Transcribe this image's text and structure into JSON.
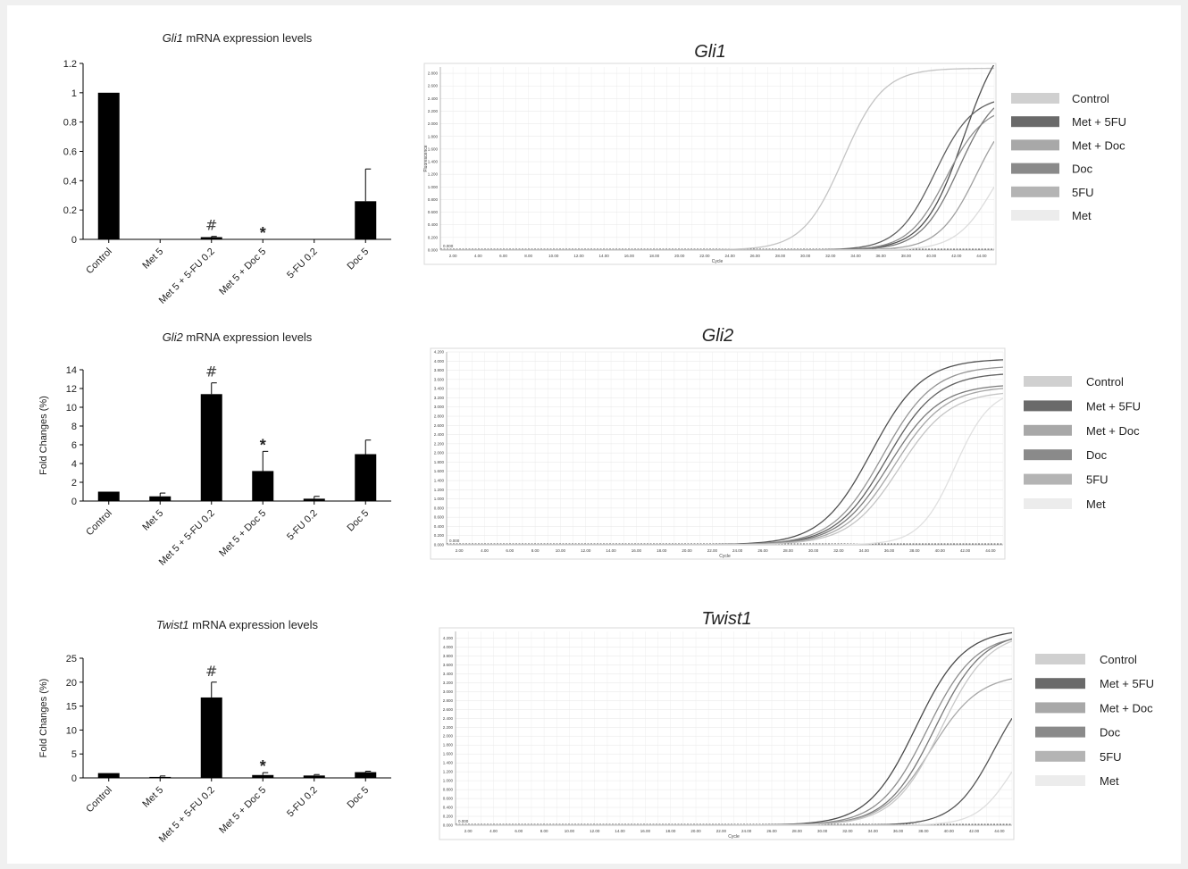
{
  "chart_data": [
    {
      "type": "bar",
      "title": "Gli1 mRNA expression levels",
      "title_italic": "Gli1",
      "title_rest": " mRNA expression levels",
      "ylabel": "",
      "categories": [
        "Control",
        "Met 5",
        "Met 5 + 5-FU 0.2",
        "Met 5 + Doc 5",
        "5-FU 0.2",
        "Doc 5"
      ],
      "values": [
        1.0,
        0.0,
        0.015,
        0.0,
        0.0,
        0.26
      ],
      "errors": [
        0,
        0,
        0.005,
        0,
        0,
        0.22
      ],
      "ylim": [
        0,
        1.2
      ],
      "yticks": [
        0,
        0.2,
        0.4,
        0.6,
        0.8,
        1,
        1.2
      ],
      "ytick_labels": [
        "0",
        "0.2",
        "0.4",
        "0.6",
        "0.8",
        "1",
        "1.2"
      ],
      "annotations": [
        {
          "category": "Met 5 + 5-FU 0.2",
          "text": "#"
        },
        {
          "category": "Met 5 + Doc 5",
          "text": "*"
        }
      ],
      "bar_color": "#000000"
    },
    {
      "type": "bar",
      "title": "Gli2 mRNA expression levels",
      "title_italic": "Gli2",
      "title_rest": " mRNA expression levels",
      "ylabel": "Fold Changes (%)",
      "categories": [
        "Control",
        "Met 5",
        "Met 5 + 5-FU 0.2",
        "Met 5 + Doc 5",
        "5-FU 0.2",
        "Doc 5"
      ],
      "values": [
        1.0,
        0.5,
        11.4,
        3.2,
        0.25,
        5.0
      ],
      "errors": [
        0,
        0.35,
        1.2,
        2.1,
        0.25,
        1.5
      ],
      "ylim": [
        0,
        14
      ],
      "yticks": [
        0,
        2,
        4,
        6,
        8,
        10,
        12,
        14
      ],
      "ytick_labels": [
        "0",
        "2",
        "4",
        "6",
        "8",
        "10",
        "12",
        "14"
      ],
      "annotations": [
        {
          "category": "Met 5 + 5-FU 0.2",
          "text": "#"
        },
        {
          "category": "Met 5 + Doc 5",
          "text": "*"
        }
      ],
      "bar_color": "#000000"
    },
    {
      "type": "bar",
      "title": "Twist1 mRNA expression levels",
      "title_italic": "Twist1",
      "title_rest": " mRNA expression levels",
      "ylabel": "Fold Changes (%)",
      "categories": [
        "Control",
        "Met 5",
        "Met 5 + 5-FU 0.2",
        "Met 5 + Doc 5",
        "5-FU 0.2",
        "Doc 5"
      ],
      "values": [
        1.0,
        0.2,
        16.8,
        0.6,
        0.5,
        1.2
      ],
      "errors": [
        0,
        0.2,
        3.2,
        0.5,
        0.2,
        0.2
      ],
      "ylim": [
        0,
        25
      ],
      "yticks": [
        0,
        5,
        10,
        15,
        20,
        25
      ],
      "ytick_labels": [
        "0",
        "5",
        "10",
        "15",
        "20",
        "25"
      ],
      "annotations": [
        {
          "category": "Met 5 + 5-FU 0.2",
          "text": "#"
        },
        {
          "category": "Met 5 + Doc 5",
          "text": "*"
        }
      ],
      "bar_color": "#000000"
    },
    {
      "type": "line",
      "title": "Gli1",
      "xlabel": "Cycle",
      "ylabel": "Fluorescence",
      "xlim": [
        1,
        45
      ],
      "ylim": [
        0,
        2.9
      ],
      "xticks": [
        2,
        4,
        6,
        8,
        10,
        12,
        14,
        16,
        18,
        20,
        22,
        24,
        26,
        28,
        30,
        32,
        34,
        36,
        38,
        40,
        42,
        44
      ],
      "xtick_labels": [
        "2.00",
        "4.00",
        "6.00",
        "8.00",
        "10.00",
        "12.00",
        "14.00",
        "16.00",
        "18.00",
        "20.00",
        "22.00",
        "24.00",
        "26.00",
        "28.00",
        "30.00",
        "32.00",
        "34.00",
        "36.00",
        "38.00",
        "40.00",
        "42.00",
        "44.00"
      ],
      "yticks": [
        0,
        0.2,
        0.4,
        0.6,
        0.8,
        1.0,
        1.2,
        1.4,
        1.6,
        1.8,
        2.0,
        2.2,
        2.4,
        2.6,
        2.8
      ],
      "ytick_labels": [
        "0.000",
        "0.200",
        "0.400",
        "0.600",
        "0.800",
        "1.000",
        "1.200",
        "1.400",
        "1.600",
        "1.800",
        "2.000",
        "2.200",
        "2.400",
        "2.600",
        "2.800"
      ],
      "threshold_label": "0.000",
      "legend": [
        {
          "name": "Control",
          "color": "#d0d0d0"
        },
        {
          "name": "Met + 5FU",
          "color": "#6a6a6a"
        },
        {
          "name": "Met + Doc",
          "color": "#a8a8a8"
        },
        {
          "name": "Doc",
          "color": "#8a8a8a"
        },
        {
          "name": "5FU",
          "color": "#b4b4b4"
        },
        {
          "name": "Met",
          "color": "#ececec"
        }
      ],
      "series": [
        {
          "name": "Control",
          "color": "#c4c4c4",
          "plateau": 2.88,
          "ct_mid": 33.0,
          "slope": 1.6
        },
        {
          "name": "Met + 5FU",
          "color": "#505050",
          "plateau": 3.6,
          "ct_mid": 42.6,
          "slope": 1.6
        },
        {
          "name": "Met + 5FU",
          "color": "#606060",
          "plateau": 2.45,
          "ct_mid": 40.3,
          "slope": 1.5
        },
        {
          "name": "Met + Doc",
          "color": "#909090",
          "plateau": 2.3,
          "ct_mid": 41.2,
          "slope": 1.5
        },
        {
          "name": "Doc",
          "color": "#7a7a7a",
          "plateau": 2.6,
          "ct_mid": 42.2,
          "slope": 1.5
        },
        {
          "name": "5FU",
          "color": "#a0a0a0",
          "plateau": 2.4,
          "ct_mid": 43.6,
          "slope": 1.5
        },
        {
          "name": "Met",
          "color": "#dcdcdc",
          "plateau": 2.0,
          "ct_mid": 45.0,
          "slope": 1.5
        }
      ]
    },
    {
      "type": "line",
      "title": "Gli2",
      "xlabel": "Cycle",
      "ylabel": "",
      "xlim": [
        1,
        45
      ],
      "ylim": [
        0,
        4.2
      ],
      "xticks": [
        2,
        4,
        6,
        8,
        10,
        12,
        14,
        16,
        18,
        20,
        22,
        24,
        26,
        28,
        30,
        32,
        34,
        36,
        38,
        40,
        42,
        44
      ],
      "xtick_labels": [
        "2.00",
        "4.00",
        "6.00",
        "8.00",
        "10.00",
        "12.00",
        "14.00",
        "16.00",
        "18.00",
        "20.00",
        "22.00",
        "24.00",
        "26.00",
        "28.00",
        "30.00",
        "32.00",
        "34.00",
        "36.00",
        "38.00",
        "40.00",
        "42.00",
        "44.00"
      ],
      "yticks": [
        0,
        0.2,
        0.4,
        0.6,
        0.8,
        1.0,
        1.2,
        1.4,
        1.6,
        1.8,
        2.0,
        2.2,
        2.4,
        2.6,
        2.8,
        3.0,
        3.2,
        3.4,
        3.6,
        3.8,
        4.0,
        4.2
      ],
      "ytick_labels": [
        "0.000",
        "0.200",
        "0.400",
        "0.600",
        "0.800",
        "1.000",
        "1.200",
        "1.400",
        "1.600",
        "1.800",
        "2.000",
        "2.200",
        "2.400",
        "2.600",
        "2.800",
        "3.000",
        "3.200",
        "3.400",
        "3.600",
        "3.800",
        "4.000",
        "4.200"
      ],
      "threshold_label": "0.000",
      "legend": [
        {
          "name": "Control",
          "color": "#d0d0d0"
        },
        {
          "name": "Met + 5FU",
          "color": "#6a6a6a"
        },
        {
          "name": "Met + Doc",
          "color": "#a8a8a8"
        },
        {
          "name": "Doc",
          "color": "#8a8a8a"
        },
        {
          "name": "5FU",
          "color": "#b4b4b4"
        },
        {
          "name": "Met",
          "color": "#ececec"
        }
      ],
      "series": [
        {
          "name": "Met + 5FU",
          "color": "#505050",
          "plateau": 4.05,
          "ct_mid": 34.6,
          "slope": 2.0
        },
        {
          "name": "Met + 5FU",
          "color": "#606060",
          "plateau": 3.75,
          "ct_mid": 35.8,
          "slope": 2.0
        },
        {
          "name": "Met + Doc",
          "color": "#949494",
          "plateau": 3.9,
          "ct_mid": 35.5,
          "slope": 2.0
        },
        {
          "name": "Doc",
          "color": "#7a7a7a",
          "plateau": 3.5,
          "ct_mid": 36.0,
          "slope": 2.0
        },
        {
          "name": "5FU",
          "color": "#a6a6a6",
          "plateau": 3.45,
          "ct_mid": 36.4,
          "slope": 2.0
        },
        {
          "name": "Control",
          "color": "#c4c4c4",
          "plateau": 3.35,
          "ct_mid": 36.8,
          "slope": 2.0
        },
        {
          "name": "Met",
          "color": "#e0e0e0",
          "plateau": 3.4,
          "ct_mid": 41.2,
          "slope": 1.4
        }
      ]
    },
    {
      "type": "line",
      "title": "Twist1",
      "xlabel": "Cycle",
      "ylabel": "",
      "xlim": [
        1,
        45
      ],
      "ylim": [
        0,
        4.35
      ],
      "xticks": [
        2,
        4,
        6,
        8,
        10,
        12,
        14,
        16,
        18,
        20,
        22,
        24,
        26,
        28,
        30,
        32,
        34,
        36,
        38,
        40,
        42,
        44
      ],
      "xtick_labels": [
        "2.00",
        "4.00",
        "6.00",
        "8.00",
        "10.00",
        "12.00",
        "14.00",
        "16.00",
        "18.00",
        "20.00",
        "22.00",
        "24.00",
        "26.00",
        "28.00",
        "30.00",
        "32.00",
        "34.00",
        "36.00",
        "38.00",
        "40.00",
        "42.00",
        "44.00"
      ],
      "yticks": [
        0,
        0.2,
        0.4,
        0.6,
        0.8,
        1.0,
        1.2,
        1.4,
        1.6,
        1.8,
        2.0,
        2.2,
        2.4,
        2.6,
        2.8,
        3.0,
        3.2,
        3.4,
        3.6,
        3.8,
        4.0,
        4.2
      ],
      "ytick_labels": [
        "0.000",
        "0.200",
        "0.400",
        "0.600",
        "0.800",
        "1.000",
        "1.200",
        "1.400",
        "1.600",
        "1.800",
        "2.000",
        "2.200",
        "2.400",
        "2.600",
        "2.800",
        "3.000",
        "3.200",
        "3.400",
        "3.600",
        "3.800",
        "4.000",
        "4.200"
      ],
      "threshold_label": "0.000",
      "legend": [
        {
          "name": "Control",
          "color": "#d0d0d0"
        },
        {
          "name": "Met + 5FU",
          "color": "#6a6a6a"
        },
        {
          "name": "Met + Doc",
          "color": "#a8a8a8"
        },
        {
          "name": "Doc",
          "color": "#8a8a8a"
        },
        {
          "name": "5FU",
          "color": "#b4b4b4"
        },
        {
          "name": "Met",
          "color": "#ececec"
        }
      ],
      "series": [
        {
          "name": "Met + 5FU",
          "color": "#4a4a4a",
          "plateau": 4.4,
          "ct_mid": 37.4,
          "slope": 1.9
        },
        {
          "name": "Met + 5FU",
          "color": "#555555",
          "plateau": 3.4,
          "ct_mid": 43.6,
          "slope": 1.6
        },
        {
          "name": "Met + Doc",
          "color": "#8e8e8e",
          "plateau": 4.3,
          "ct_mid": 38.3,
          "slope": 1.9
        },
        {
          "name": "Doc",
          "color": "#787878",
          "plateau": 4.35,
          "ct_mid": 38.9,
          "slope": 1.9
        },
        {
          "name": "5FU",
          "color": "#a8a8a8",
          "plateau": 3.4,
          "ct_mid": 38.6,
          "slope": 1.9
        },
        {
          "name": "Control",
          "color": "#c8c8c8",
          "plateau": 4.35,
          "ct_mid": 39.4,
          "slope": 1.9
        },
        {
          "name": "Met",
          "color": "#dedede",
          "plateau": 2.4,
          "ct_mid": 45.0,
          "slope": 1.4
        }
      ]
    }
  ]
}
